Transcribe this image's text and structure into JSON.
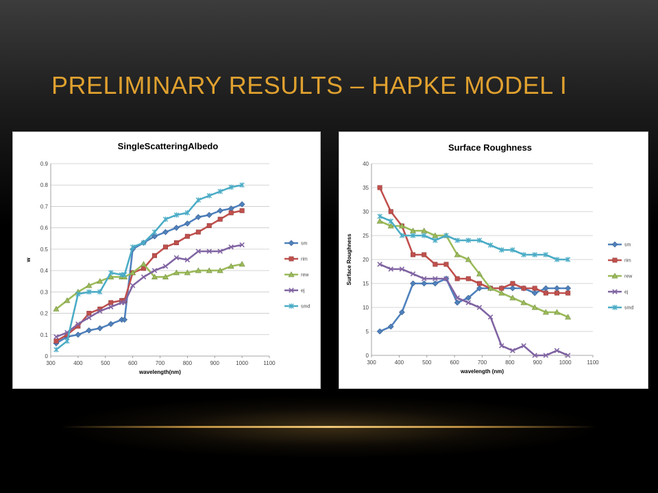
{
  "slide": {
    "title": "PRELIMINARY RESULTS – HAPKE MODEL I"
  },
  "colors": {
    "title": "#e0a12f",
    "sm": "#4f81bd",
    "rim": "#c0504d",
    "rew": "#9bbb59",
    "ej": "#8064a2",
    "smd": "#4bacc6"
  },
  "chart_data": [
    {
      "type": "line",
      "title": "Single\u001fScattering\u001fAlbedo\u001f",
      "xlabel": "wavelength\u001f(nm)\u001f",
      "ylabel": "w\u001f",
      "xlim": [
        300,
        1100
      ],
      "ylim": [
        0,
        0.9
      ],
      "xticks": [
        "300\u001f",
        "400\u001f",
        "500\u001f",
        "600\u001f",
        "700\u001f",
        "800\u001f",
        "900\u001f",
        "1000\u001f",
        "1100\u001f"
      ],
      "yticks": [
        "0\u001f",
        "0.1\u001f",
        "0.2\u001f",
        "0.3\u001f",
        "0.4\u001f",
        "0.5\u001f",
        "0.6\u001f",
        "0.7\u001f",
        "0.8\u001f",
        "0.9\u001f"
      ],
      "grid": "horizontal",
      "legend_position": "right",
      "x": [
        320,
        360,
        400,
        440,
        480,
        520,
        560,
        570,
        600,
        640,
        680,
        720,
        760,
        800,
        840,
        880,
        920,
        960,
        1000
      ],
      "series": [
        {
          "name": "sm\u001f",
          "marker": "diamond",
          "values": [
            0.06,
            0.09,
            0.1,
            0.12,
            0.13,
            0.15,
            0.17,
            0.17,
            0.5,
            0.53,
            0.56,
            0.58,
            0.6,
            0.62,
            0.65,
            0.66,
            0.68,
            0.69,
            0.71
          ]
        },
        {
          "name": "rim\u001f",
          "marker": "square",
          "values": [
            0.07,
            0.1,
            0.14,
            0.2,
            0.22,
            0.25,
            0.26,
            0.26,
            0.39,
            0.41,
            0.47,
            0.51,
            0.53,
            0.56,
            0.58,
            0.61,
            0.64,
            0.67,
            0.68
          ]
        },
        {
          "name": "rew\u001f",
          "marker": "triangle",
          "values": [
            0.22,
            0.26,
            0.3,
            0.33,
            0.35,
            0.37,
            0.37,
            0.37,
            0.39,
            0.43,
            0.37,
            0.37,
            0.39,
            0.39,
            0.4,
            0.4,
            0.4,
            0.42,
            0.43
          ]
        },
        {
          "name": "ej\u001f",
          "marker": "x",
          "values": [
            0.09,
            0.11,
            0.15,
            0.18,
            0.21,
            0.23,
            0.25,
            0.25,
            0.33,
            0.37,
            0.4,
            0.42,
            0.46,
            0.45,
            0.49,
            0.49,
            0.49,
            0.51,
            0.52
          ]
        },
        {
          "name": "smd\u001f",
          "marker": "star",
          "values": [
            0.03,
            0.07,
            0.29,
            0.3,
            0.3,
            0.39,
            0.38,
            0.38,
            0.51,
            0.53,
            0.58,
            0.64,
            0.66,
            0.67,
            0.73,
            0.75,
            0.77,
            0.79,
            0.8
          ]
        }
      ]
    },
    {
      "type": "line",
      "title": "Surface Roughness",
      "xlabel": "wavelength (nm)",
      "ylabel": "Surface Roughness",
      "xlim": [
        300,
        1100
      ],
      "ylim": [
        0,
        40
      ],
      "xticks": [
        "300",
        "400",
        "500",
        "600",
        "700",
        "800",
        "900",
        "1000",
        "1100"
      ],
      "yticks": [
        "0",
        "5",
        "10",
        "15",
        "20",
        "25",
        "30",
        "35",
        "40"
      ],
      "grid": "horizontal",
      "legend_position": "right",
      "x": [
        330,
        370,
        410,
        450,
        490,
        530,
        570,
        610,
        650,
        690,
        730,
        770,
        810,
        850,
        890,
        930,
        970,
        1010
      ],
      "series": [
        {
          "name": "sm",
          "marker": "diamond",
          "values": [
            5,
            6,
            9,
            15,
            15,
            15,
            16,
            11,
            12,
            14,
            14,
            14,
            14,
            14,
            13,
            14,
            14,
            14
          ]
        },
        {
          "name": "rim",
          "marker": "square",
          "values": [
            35,
            30,
            27,
            21,
            21,
            19,
            19,
            16,
            16,
            15,
            14,
            14,
            15,
            14,
            14,
            13,
            13,
            13
          ]
        },
        {
          "name": "rew",
          "marker": "triangle",
          "values": [
            28,
            27,
            27,
            26,
            26,
            25,
            25,
            21,
            20,
            17,
            14,
            13,
            12,
            11,
            10,
            9,
            9,
            8
          ]
        },
        {
          "name": "ej",
          "marker": "x",
          "values": [
            19,
            18,
            18,
            17,
            16,
            16,
            16,
            12,
            11,
            10,
            8,
            2,
            1,
            2,
            0,
            0,
            1,
            0
          ]
        },
        {
          "name": "smd",
          "marker": "star",
          "values": [
            29,
            28,
            25,
            25,
            25,
            24,
            25,
            24,
            24,
            24,
            23,
            22,
            22,
            21,
            21,
            21,
            20,
            20
          ]
        }
      ]
    }
  ]
}
